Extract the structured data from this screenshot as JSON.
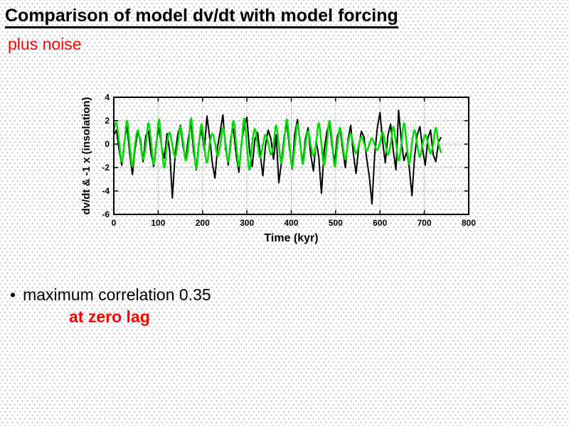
{
  "slide": {
    "title": "Comparison of model dv/dt with model forcing",
    "subtitle": "plus noise",
    "bullet": {
      "marker": "•",
      "text": "maximum correlation 0.35",
      "emphasis": "at zero lag"
    },
    "colors": {
      "accent_red": "#ff0000",
      "series_black": "#000000",
      "series_green": "#00dd00",
      "grid": "#888888",
      "background_dot": "#b6b6b6"
    }
  },
  "chart_data": {
    "type": "line",
    "title": "",
    "xlabel": "Time (kyr)",
    "ylabel": "dv/dt & -1 x (insolation)",
    "xlim": [
      0,
      800
    ],
    "ylim": [
      -6,
      4
    ],
    "xticks": [
      0,
      100,
      200,
      300,
      400,
      500,
      600,
      700,
      800
    ],
    "yticks": [
      4,
      2,
      0,
      -2,
      -4,
      -6
    ],
    "grid": true,
    "legend": "none",
    "x_start": 0,
    "x_step": 6,
    "series": [
      {
        "name": "dv/dt",
        "color": "#000000",
        "width": 2,
        "smooth": false,
        "values": [
          0.8,
          1.2,
          -0.5,
          -1.8,
          0.3,
          1.5,
          -0.9,
          -2.6,
          -0.4,
          1.0,
          0.4,
          -1.5,
          0.7,
          1.1,
          -0.8,
          -1.9,
          0.2,
          1.4,
          -0.3,
          -1.2,
          0.9,
          -0.6,
          -4.6,
          -1.0,
          0.8,
          1.6,
          -0.2,
          -1.4,
          0.5,
          1.9,
          -0.7,
          -2.2,
          0.3,
          1.2,
          -0.5,
          2.4,
          0.6,
          -1.6,
          -2.9,
          -0.2,
          1.1,
          2.5,
          -0.4,
          -1.8,
          0.6,
          1.3,
          -1.0,
          -2.4,
          0.2,
          1.5,
          2.3,
          -0.6,
          -1.9,
          0.4,
          1.0,
          -0.8,
          -2.7,
          -0.1,
          1.2,
          0.5,
          -1.3,
          0.8,
          -3.3,
          -1.5,
          0.6,
          1.8,
          -0.4,
          -2.1,
          0.9,
          2.1,
          0.1,
          -1.7,
          0.5,
          1.4,
          -0.9,
          -2.3,
          0.3,
          -1.1,
          -4.2,
          -0.6,
          1.0,
          1.9,
          -0.2,
          -1.5,
          0.7,
          1.3,
          -0.5,
          -2.0,
          0.4,
          1.6,
          -0.8,
          -2.5,
          -0.3,
          1.1,
          0.6,
          -1.2,
          -2.8,
          -5.1,
          -0.9,
          1.4,
          2.7,
          0.2,
          -1.6,
          0.8,
          1.7,
          -0.6,
          -2.2,
          2.9,
          0.3,
          -1.4,
          -0.7,
          -2.0,
          -4.4,
          -1.1,
          0.8,
          1.5,
          -0.4,
          -1.8,
          0.5,
          1.2,
          -0.9,
          -1.5,
          0.2,
          0.6
        ]
      },
      {
        "name": "-1 x (insolation)",
        "color": "#00dd00",
        "width": 2.5,
        "smooth": true,
        "values": [
          1.2,
          1.8,
          0.2,
          -1.5,
          0.1,
          2.0,
          -0.2,
          -1.9,
          0.0,
          1.2,
          0.1,
          -1.3,
          -0.1,
          1.8,
          0.2,
          -1.7,
          0.0,
          2.1,
          -0.3,
          -2.0,
          0.1,
          1.0,
          -0.1,
          -1.1,
          0.0,
          1.5,
          0.2,
          -1.4,
          -0.2,
          2.2,
          0.0,
          -2.1,
          0.1,
          1.7,
          -0.2,
          -1.6,
          0.0,
          0.9,
          0.1,
          -1.0,
          -0.1,
          1.4,
          0.0,
          -1.5,
          0.2,
          2.0,
          -0.1,
          -1.9,
          0.0,
          2.2,
          -0.2,
          -2.2,
          0.1,
          1.3,
          0.0,
          -1.2,
          -0.1,
          0.8,
          0.1,
          -0.9,
          0.0,
          1.6,
          -0.1,
          -1.6,
          0.2,
          2.1,
          0.0,
          -2.0,
          -0.1,
          1.7,
          0.1,
          -1.7,
          0.0,
          1.1,
          -0.1,
          -1.0,
          0.1,
          1.8,
          0.0,
          -1.8,
          -0.1,
          2.0,
          0.2,
          -1.9,
          0.0,
          1.4,
          -0.1,
          -1.3,
          0.1,
          0.9,
          0.0,
          -0.8,
          -0.1,
          0.6,
          0.1,
          -0.6,
          0.0,
          0.5,
          -0.1,
          -0.5,
          0.1,
          1.0,
          0.0,
          -0.9,
          0.0,
          1.5,
          0.1,
          -1.4,
          -0.1,
          1.8,
          0.0,
          -1.7,
          0.1,
          1.2,
          -0.1,
          -1.1,
          0.0,
          0.8,
          0.1,
          -0.8,
          0.0,
          1.4,
          0.0,
          -0.7
        ]
      }
    ]
  }
}
